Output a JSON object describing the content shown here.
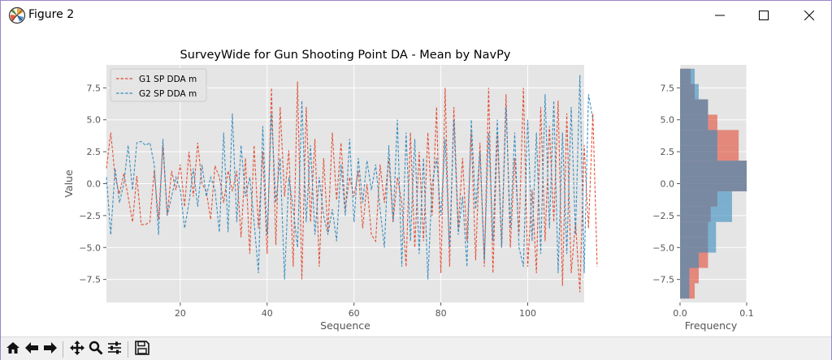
{
  "window": {
    "title": "Figure 2",
    "icon": "matplotlib-logo-icon",
    "controls": [
      "minimize-icon",
      "maximize-icon",
      "close-icon"
    ]
  },
  "toolbar": {
    "buttons": [
      {
        "name": "home-button",
        "icon": "home-icon"
      },
      {
        "name": "back-button",
        "icon": "arrow-left-icon"
      },
      {
        "name": "forward-button",
        "icon": "arrow-right-icon"
      },
      {
        "name": "pan-button",
        "icon": "move-arrows-icon"
      },
      {
        "name": "zoom-button",
        "icon": "magnifier-icon"
      },
      {
        "name": "configure-subplots-button",
        "icon": "sliders-icon"
      },
      {
        "name": "save-button",
        "icon": "floppy-disk-icon"
      }
    ]
  },
  "chart_data": [
    {
      "type": "line",
      "title": "SurveyWide for  Gun Shooting Point DA - Mean by NavPy",
      "xlabel": "Sequence",
      "ylabel": "Value",
      "xlim": [
        3,
        113
      ],
      "ylim": [
        -9.3,
        9.3
      ],
      "xticks": [
        20,
        40,
        60,
        80,
        100
      ],
      "yticks": [
        -7.5,
        -5.0,
        -2.5,
        0.0,
        2.5,
        5.0,
        7.5
      ],
      "grid": true,
      "legend": "upper-left",
      "line_style": "dashed",
      "x_start": 3,
      "series": [
        {
          "name": "G1 SP DDA m",
          "color": "#e24a33",
          "values": [
            1.2,
            4.0,
            0.5,
            -0.8,
            0.8,
            -1.0,
            -3.0,
            0.6,
            -3.2,
            -3.2,
            -3.0,
            1.0,
            -2.8,
            3.0,
            -2.5,
            1.0,
            -0.5,
            1.5,
            -1.8,
            2.5,
            -1.0,
            3.2,
            0.0,
            -0.6,
            -2.8,
            1.4,
            0.5,
            -1.5,
            1.0,
            -0.6,
            1.0,
            -4.2,
            2.0,
            -5.5,
            3.0,
            -3.5,
            2.5,
            -5.5,
            7.5,
            -4.8,
            6.0,
            -1.0,
            2.6,
            -6.5,
            8.0,
            -7.5,
            6.0,
            -3.0,
            3.5,
            -6.5,
            2.0,
            -3.8,
            4.0,
            -1.3,
            3.2,
            -2.0,
            0.5,
            -1.0,
            1.0,
            -3.5,
            0.0,
            -4.0,
            -4.5,
            1.5,
            -1.5,
            2.0,
            -3.0,
            0.5,
            -1.5,
            -6.5,
            4.0,
            -5.0,
            2.5,
            -4.5,
            4.0,
            -2.5,
            6.0,
            -7.0,
            7.5,
            -6.5,
            6.0,
            -3.5,
            2.0,
            -4.5,
            4.0,
            -6.0,
            3.2,
            -6.5,
            7.5,
            -7.0,
            4.0,
            -5.0,
            7.0,
            -5.0,
            2.0,
            -4.0,
            7.5,
            -6.5,
            -0.5,
            -7.0,
            6.0,
            -4.5,
            4.5,
            -3.0,
            6.5,
            -8.0,
            5.5,
            -7.0,
            -3.0,
            -8.5,
            3.0,
            -3.5,
            5.5,
            -6.5
          ]
        },
        {
          "name": "G2 SP DDA m",
          "color": "#348abd",
          "values": [
            0.5,
            -4.0,
            1.2,
            -1.5,
            0.0,
            3.0,
            -0.5,
            3.2,
            3.3,
            3.0,
            3.2,
            1.5,
            -4.0,
            3.5,
            -2.5,
            -1.0,
            0.5,
            -0.5,
            -3.5,
            -1.5,
            1.2,
            -1.8,
            1.5,
            -1.0,
            0.5,
            -0.5,
            -3.8,
            4.0,
            -3.8,
            5.5,
            -3.0,
            3.0,
            -1.0,
            0.5,
            -3.0,
            -7.0,
            4.5,
            -4.0,
            5.5,
            -1.5,
            2.0,
            -7.5,
            0.5,
            -2.0,
            -5.0,
            6.5,
            -3.0,
            3.0,
            -4.0,
            0.5,
            -2.5,
            -4.0,
            -2.0,
            -4.5,
            1.5,
            -2.5,
            3.5,
            -3.0,
            2.0,
            -1.5,
            1.8,
            -0.5,
            1.5,
            -2.0,
            -5.0,
            3.0,
            -3.0,
            5.0,
            -6.5,
            4.0,
            -4.5,
            3.5,
            -5.5,
            2.0,
            -7.5,
            0.0,
            2.0,
            -2.5,
            3.5,
            -5.0,
            5.0,
            -4.0,
            -1.0,
            -6.5,
            5.0,
            -2.0,
            2.5,
            -6.0,
            4.0,
            -4.5,
            5.0,
            -5.0,
            6.0,
            -3.5,
            4.0,
            -5.0,
            -6.5,
            5.0,
            -4.5,
            4.0,
            -5.5,
            7.0,
            -3.5,
            6.5,
            -7.0,
            4.0,
            -5.5,
            6.0,
            -4.0,
            8.5,
            -7.0,
            7.0,
            5.0
          ]
        }
      ]
    },
    {
      "type": "bar",
      "orientation": "horizontal-histogram",
      "xlabel": "Frequency",
      "xlim": [
        0,
        0.1
      ],
      "xticks": [
        0.0,
        0.1
      ],
      "ylim": [
        -9.3,
        9.3
      ],
      "yticks": [
        -7.5,
        -5.0,
        -2.5,
        0.0,
        2.5,
        5.0,
        7.5
      ],
      "bin_edges": [
        -9.0,
        -7.8,
        -6.6,
        -5.4,
        -4.2,
        -3.0,
        -1.8,
        -0.6,
        0.6,
        1.8,
        3.0,
        4.2,
        5.4,
        6.6,
        7.8,
        9.0
      ],
      "series": [
        {
          "name": "G1 SP DDA m",
          "color": "#e24a33",
          "values": [
            0.022,
            0.028,
            0.042,
            0.042,
            0.042,
            0.046,
            0.056,
            0.1,
            0.1,
            0.088,
            0.088,
            0.056,
            0.042,
            0.022,
            0.016
          ]
        },
        {
          "name": "G2 SP DDA m",
          "color": "#348abd",
          "values": [
            0.014,
            0.014,
            0.028,
            0.054,
            0.054,
            0.078,
            0.078,
            0.1,
            0.1,
            0.056,
            0.056,
            0.042,
            0.042,
            0.028,
            0.022
          ]
        }
      ]
    }
  ]
}
